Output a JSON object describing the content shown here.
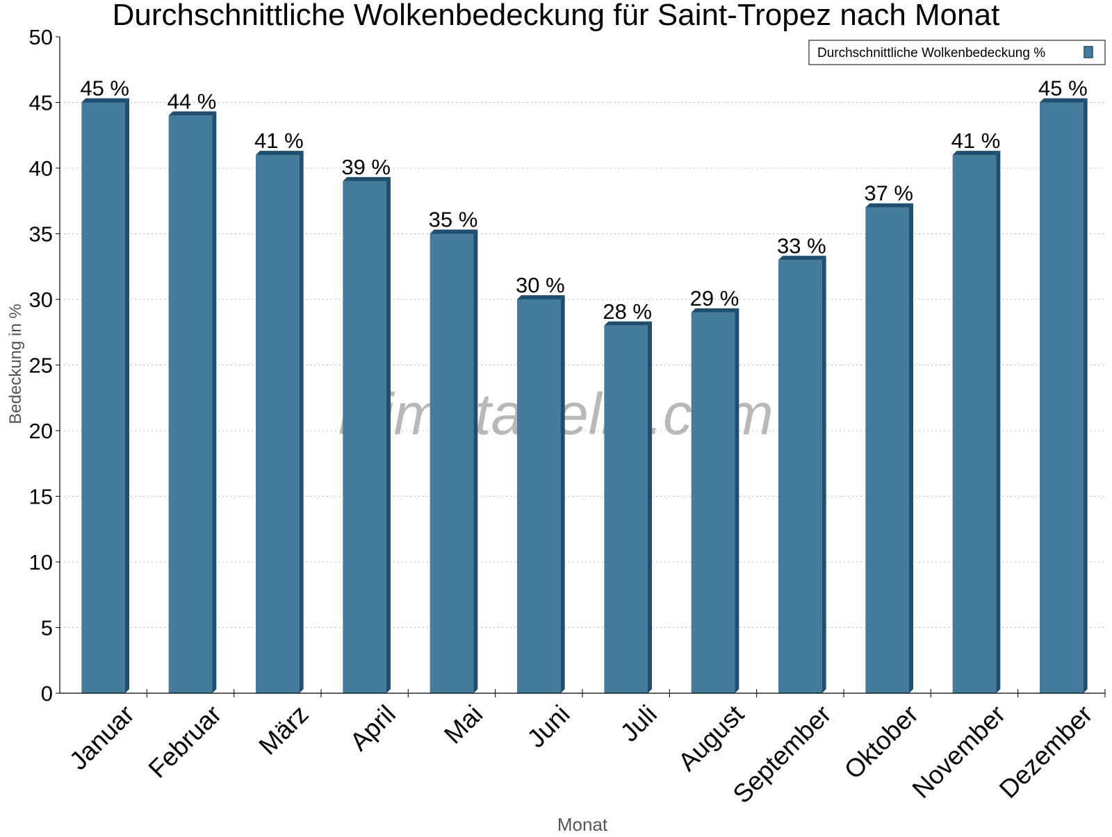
{
  "chart_data": {
    "type": "bar",
    "title": "Durchschnittliche Wolkenbedeckung für Saint-Tropez nach Monat",
    "xlabel": "Monat",
    "ylabel": "Bedeckung in %",
    "ylim": [
      0,
      50
    ],
    "yticks": [
      0,
      5,
      10,
      15,
      20,
      25,
      30,
      35,
      40,
      45,
      50
    ],
    "grid": true,
    "legend_position": "top-right",
    "value_suffix": " %",
    "categories": [
      "Januar",
      "Februar",
      "März",
      "April",
      "Mai",
      "Juni",
      "Juli",
      "August",
      "September",
      "Oktober",
      "November",
      "Dezember"
    ],
    "series": [
      {
        "name": "Durchschnittliche Wolkenbedeckung %",
        "color": "#457b9d",
        "values": [
          45,
          44,
          41,
          39,
          35,
          30,
          28,
          29,
          33,
          37,
          41,
          45
        ]
      }
    ],
    "watermark": "klimatabelle.com"
  }
}
